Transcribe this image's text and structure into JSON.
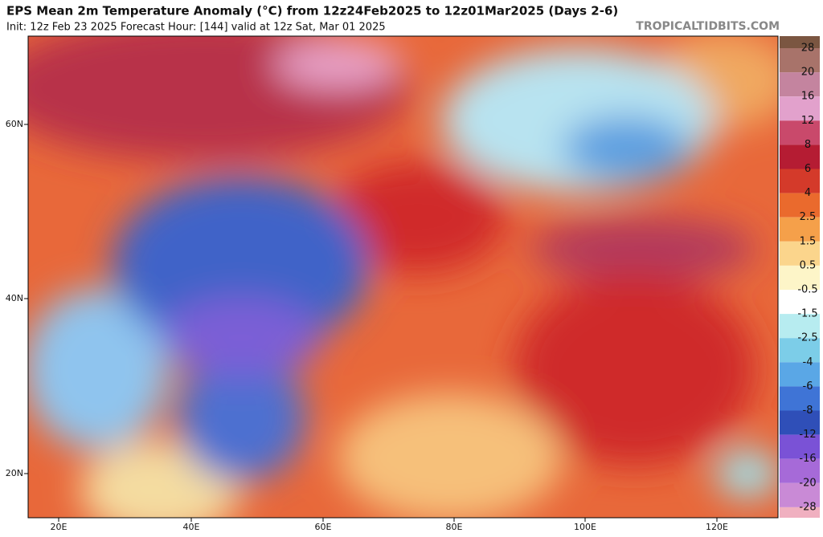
{
  "header": {
    "title": "EPS Mean 2m Temperature Anomaly (°C) from 12z24Feb2025 to 12z01Mar2025 (Days 2-6)",
    "subtitle": "Init: 12z Feb 23 2025   Forecast Hour: [144]   valid at 12z Sat, Mar 01 2025",
    "watermark": "TROPICALTIDBITS.COM"
  },
  "map": {
    "lat_labels": [
      "60N",
      "40N",
      "20N"
    ],
    "lon_labels": [
      "20E",
      "40E",
      "60E",
      "80E",
      "100E",
      "120E"
    ]
  },
  "colorbar": {
    "levels": [
      28,
      20,
      16,
      12,
      8,
      6,
      4,
      2.5,
      1.5,
      0.5,
      -0.5,
      -1.5,
      -2.5,
      -4,
      -6,
      -8,
      -12,
      -16,
      -20,
      -28
    ],
    "colors": [
      "#7b5641",
      "#a8736a",
      "#c4849f",
      "#e2a1cc",
      "#c9496b",
      "#b51c33",
      "#d43a2a",
      "#ea6a2d",
      "#f5a04a",
      "#fbd58c",
      "#fdf5c8",
      "#ffffff",
      "#b7ecf0",
      "#7ccde8",
      "#5aa7e6",
      "#3f74d6",
      "#2f4fb8",
      "#7a52d6",
      "#a66ad8",
      "#c98ad6",
      "#f0b0c0"
    ]
  }
}
